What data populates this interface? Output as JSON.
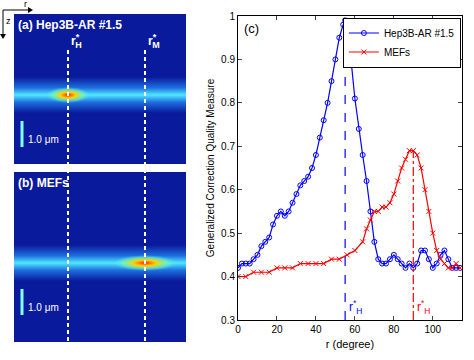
{
  "images": {
    "axes": {
      "horizontal": "r",
      "vertical": "z"
    },
    "markers": [
      {
        "base": "r",
        "sup": "*",
        "sub": "H"
      },
      {
        "base": "r",
        "sup": "*",
        "sub": "M"
      }
    ],
    "panels": [
      {
        "label": "(a) Hep3B-AR #1.5",
        "scale_bar": "1.0 μm"
      },
      {
        "label": "(b) MEFs",
        "scale_bar": "1.0 μm"
      }
    ]
  },
  "chart_data": {
    "type": "line",
    "panel_label": "(c)",
    "x_label": "r (degree)",
    "y_label": "Generalized Correction Quality Measure",
    "xlim": [
      0,
      115
    ],
    "xticks": [
      0,
      20,
      40,
      60,
      80,
      100
    ],
    "ylim": [
      0.3,
      1.0
    ],
    "yticks": [
      0.3,
      0.4,
      0.5,
      0.6,
      0.7,
      0.8,
      0.9,
      1
    ],
    "grid": false,
    "legend": "top right",
    "series": [
      {
        "name": "Hep3B-AR #1.5",
        "color": "#0000ff",
        "marker": "circle",
        "line_style": "solid",
        "x": [
          0,
          2,
          4,
          6,
          8,
          10,
          12,
          14,
          16,
          18,
          20,
          22,
          24,
          26,
          28,
          30,
          32,
          34,
          36,
          38,
          40,
          42,
          44,
          46,
          48,
          50,
          52,
          54,
          55,
          56,
          58,
          60,
          62,
          64,
          66,
          68,
          70,
          72,
          74,
          76,
          78,
          80,
          82,
          84,
          86,
          88,
          90,
          92,
          94,
          96,
          98,
          100,
          102,
          104,
          106,
          108,
          110,
          112,
          114
        ],
        "values": [
          0.42,
          0.43,
          0.43,
          0.43,
          0.44,
          0.45,
          0.47,
          0.48,
          0.49,
          0.52,
          0.54,
          0.55,
          0.54,
          0.55,
          0.57,
          0.59,
          0.61,
          0.62,
          0.63,
          0.65,
          0.68,
          0.72,
          0.76,
          0.8,
          0.85,
          0.9,
          0.95,
          0.98,
          0.99,
          0.97,
          0.9,
          0.81,
          0.74,
          0.68,
          0.62,
          0.55,
          0.48,
          0.44,
          0.43,
          0.43,
          0.44,
          0.45,
          0.44,
          0.43,
          0.42,
          0.43,
          0.42,
          0.43,
          0.46,
          0.46,
          0.44,
          0.42,
          0.43,
          0.45,
          0.46,
          0.44,
          0.42,
          0.42,
          0.42
        ]
      },
      {
        "name": "MEFs",
        "color": "#ff0000",
        "marker": "x",
        "line_style": "solid",
        "x": [
          0,
          4,
          8,
          12,
          16,
          20,
          24,
          28,
          32,
          36,
          40,
          44,
          48,
          52,
          56,
          60,
          64,
          66,
          68,
          70,
          72,
          74,
          76,
          78,
          80,
          82,
          84,
          86,
          88,
          90,
          92,
          94,
          96,
          98,
          100,
          102,
          104,
          106,
          108,
          110,
          112,
          114
        ],
        "values": [
          0.4,
          0.4,
          0.41,
          0.41,
          0.41,
          0.42,
          0.42,
          0.42,
          0.43,
          0.43,
          0.43,
          0.43,
          0.44,
          0.44,
          0.45,
          0.46,
          0.48,
          0.51,
          0.53,
          0.55,
          0.55,
          0.56,
          0.56,
          0.57,
          0.59,
          0.62,
          0.65,
          0.67,
          0.69,
          0.69,
          0.68,
          0.65,
          0.6,
          0.55,
          0.5,
          0.46,
          0.44,
          0.43,
          0.42,
          0.42,
          0.43,
          0.42
        ]
      }
    ],
    "annotations": [
      {
        "x": 55,
        "y": 0.99,
        "label": {
          "base": "r",
          "sup": "*",
          "sub": "H"
        },
        "color": "#0000ff",
        "line_style": "dashed"
      },
      {
        "x": 90,
        "y": 0.69,
        "label": {
          "base": "r",
          "sup": "*",
          "sub": "H"
        },
        "color": "#ff0000",
        "line_style": "dashdot"
      }
    ]
  }
}
